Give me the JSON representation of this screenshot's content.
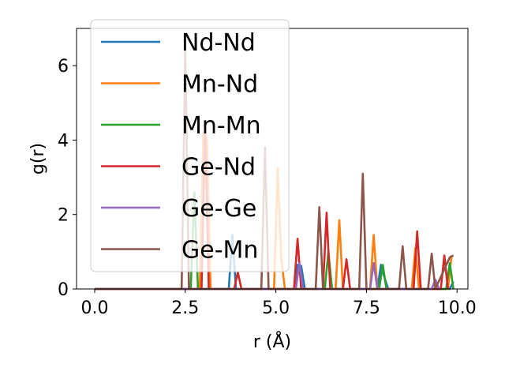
{
  "chart_data": {
    "type": "line",
    "xlabel": "r (Å)",
    "ylabel": "g(r)",
    "xlim": [
      -0.5,
      10.3
    ],
    "ylim": [
      0,
      7
    ],
    "xticks": [
      0.0,
      2.5,
      5.0,
      7.5,
      10.0
    ],
    "xtick_labels": [
      "0.0",
      "2.5",
      "5.0",
      "7.5",
      "10.0"
    ],
    "yticks": [
      0,
      2,
      4,
      6
    ],
    "ytick_labels": [
      "0",
      "2",
      "4",
      "6"
    ],
    "grid": false,
    "legend_position": "upper-left",
    "series": [
      {
        "name": "Nd-Nd",
        "color": "#1f77b4",
        "x": [
          0,
          3.7,
          3.8,
          3.9,
          4.0,
          5.5,
          5.6,
          5.7,
          5.8,
          7.8,
          7.9,
          8.0,
          8.1,
          9.8,
          9.9
        ],
        "y": [
          0,
          0,
          1.45,
          0,
          0,
          0,
          0.65,
          0.62,
          0,
          0,
          0.65,
          0.3,
          0,
          0,
          0.2
        ]
      },
      {
        "name": "Mn-Nd",
        "color": "#ff7f0e",
        "x": [
          0,
          2.9,
          3.0,
          3.1,
          3.2,
          4.95,
          5.05,
          5.15,
          5.25,
          6.65,
          6.75,
          6.85,
          7.6,
          7.7,
          7.8,
          8.75,
          8.85,
          8.95,
          9.75,
          9.85
        ],
        "y": [
          0,
          0,
          4.2,
          4.0,
          0,
          0,
          3.25,
          0.8,
          0,
          0,
          1.85,
          0,
          0,
          1.45,
          0,
          0,
          1.1,
          0,
          0,
          0.9
        ]
      },
      {
        "name": "Mn-Mn",
        "color": "#2ca02c",
        "x": [
          0,
          2.65,
          2.75,
          2.85,
          6.35,
          6.45,
          6.55,
          7.85,
          7.95,
          8.05,
          9.7,
          9.8,
          9.9
        ],
        "y": [
          0,
          0,
          2.6,
          0,
          0,
          1.0,
          0,
          0,
          0.65,
          0,
          0,
          0.7,
          0
        ]
      },
      {
        "name": "Ge-Nd",
        "color": "#d62728",
        "x": [
          0,
          2.95,
          3.05,
          3.15,
          3.85,
          3.95,
          4.05,
          5.5,
          5.6,
          5.7,
          6.3,
          6.4,
          6.5,
          6.85,
          6.95,
          7.05,
          8.8,
          8.9,
          9.0,
          9.55,
          9.65,
          9.75
        ],
        "y": [
          0,
          0,
          4.35,
          0,
          0,
          0.45,
          0,
          0,
          1.35,
          0,
          0,
          2.05,
          0,
          0,
          0.8,
          0,
          0,
          1.55,
          0,
          0,
          0.9,
          0
        ]
      },
      {
        "name": "Ge-Ge",
        "color": "#9467bd",
        "x": [
          0,
          5.55,
          5.65,
          5.75,
          7.6,
          7.7,
          7.8,
          9.3,
          9.4,
          9.5
        ],
        "y": [
          0,
          0,
          0.7,
          0,
          0,
          0.7,
          0,
          0,
          0.25,
          0
        ]
      },
      {
        "name": "Ge-Mn",
        "color": "#8c564b",
        "x": [
          0,
          2.4,
          2.5,
          2.6,
          4.6,
          4.7,
          4.8,
          6.1,
          6.2,
          6.3,
          7.3,
          7.4,
          7.5,
          8.4,
          8.5,
          8.6,
          9.2,
          9.3,
          9.4,
          9.8,
          9.9
        ],
        "y": [
          0,
          0,
          6.5,
          0,
          0,
          3.8,
          0,
          0,
          2.2,
          0,
          0,
          3.1,
          0,
          0,
          1.15,
          0,
          0,
          0.95,
          0,
          0.85,
          0.9
        ]
      }
    ]
  }
}
